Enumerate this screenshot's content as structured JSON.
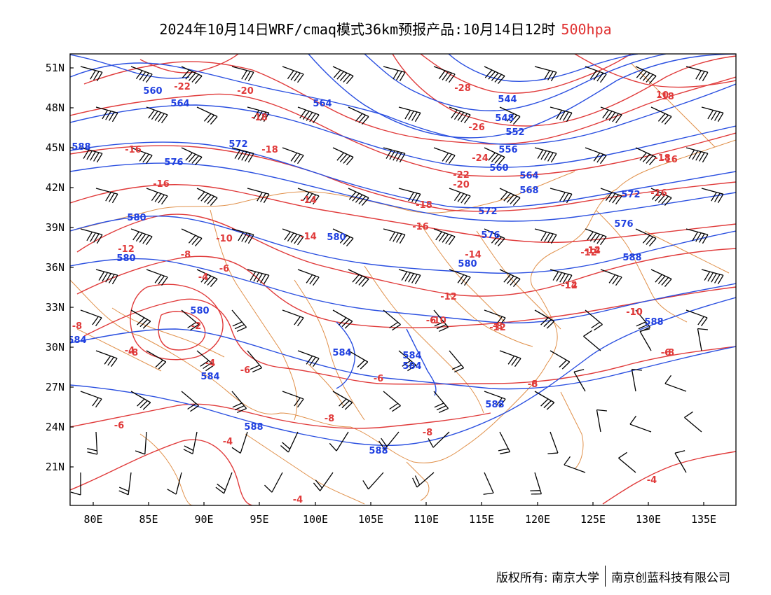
{
  "title": {
    "main": "2024年10月14日WRF/cmaq模式36km预报产品:10月14日12时",
    "level": "500hpa"
  },
  "axes": {
    "x_ticks": [
      "80E",
      "85E",
      "90E",
      "95E",
      "100E",
      "105E",
      "110E",
      "115E",
      "120E",
      "125E",
      "130E",
      "135E"
    ],
    "y_ticks": [
      "51N",
      "48N",
      "45N",
      "42N",
      "39N",
      "36N",
      "33N",
      "30N",
      "27N",
      "24N",
      "21N"
    ]
  },
  "colors": {
    "geopotential_contour": "#2a4fe0",
    "temperature_contour": "#e03a3a",
    "boundaries": "#e0904a",
    "wind_barbs": "#000000"
  },
  "contour_labels": {
    "temperature": [
      "-22",
      "-20",
      "-18",
      "-18",
      "-16",
      "-16",
      "-14",
      "-14",
      "-12",
      "-10",
      "-8",
      "-6",
      "-4",
      "-2",
      "-6",
      "-4",
      "-8",
      "-12",
      "-10",
      "-12",
      "-28",
      "-26",
      "-24",
      "-22",
      "-20",
      "-18",
      "-16",
      "-14",
      "-12",
      "-14",
      "-16",
      "-18",
      "-12",
      "-10",
      "-8",
      "-6",
      "-8",
      "-8",
      "-6",
      "-4",
      "-4",
      "-4",
      "-4",
      "-6",
      "-6",
      "-8",
      "-8",
      "10",
      "-18",
      "-16",
      "-14",
      "-12",
      "-10",
      "-8",
      "-6"
    ],
    "height": [
      "560",
      "564",
      "572",
      "576",
      "580",
      "580",
      "580",
      "584",
      "584",
      "588",
      "564",
      "544",
      "548",
      "552",
      "556",
      "560",
      "564",
      "568",
      "572",
      "576",
      "580",
      "584",
      "584",
      "584",
      "588",
      "588",
      "572",
      "576",
      "580",
      "588",
      "588",
      "588"
    ]
  },
  "footer": {
    "copyright": "版权所有: 南京大学",
    "company": "南京创蓝科技有限公司"
  }
}
